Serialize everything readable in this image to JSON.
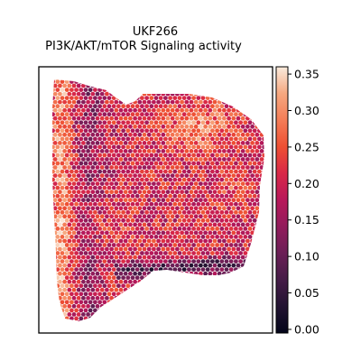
{
  "chart_data": {
    "type": "heatmap",
    "title": "UKF266",
    "subtitle": "PI3K/AKT/mTOR Signaling activity",
    "xlabel": "",
    "ylabel": "",
    "grid": false,
    "legend": "colorbar-right",
    "colormap": "rocket",
    "colorbar": {
      "min": -0.005,
      "max": 0.36,
      "ticks": [
        0.0,
        0.05,
        0.1,
        0.15,
        0.2,
        0.25,
        0.3,
        0.35
      ],
      "tick_labels": [
        "0.00",
        "0.05",
        "0.10",
        "0.15",
        "0.20",
        "0.25",
        "0.30",
        "0.35"
      ]
    },
    "tissue_regions": [
      {
        "region": "left edge",
        "typical_value": 0.3
      },
      {
        "region": "left-center band",
        "typical_value": 0.14
      },
      {
        "region": "center",
        "typical_value": 0.22
      },
      {
        "region": "upper right",
        "typical_value": 0.3
      },
      {
        "region": "lower-center boundary",
        "typical_value": 0.07
      },
      {
        "region": "right edge",
        "typical_value": 0.21
      }
    ]
  }
}
